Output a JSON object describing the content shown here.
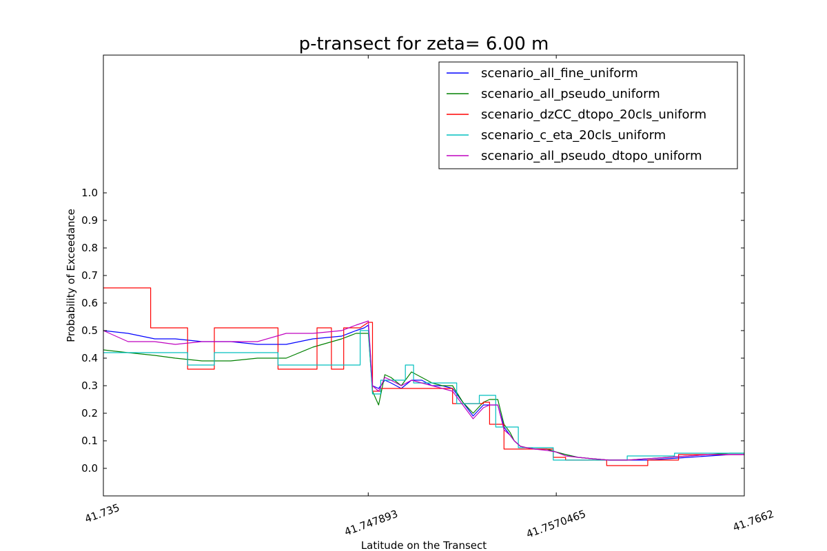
{
  "chart_data": {
    "type": "line",
    "title": "p-transect for zeta= 6.00 m",
    "xlabel": "Latitude on the Transect",
    "ylabel": "Probability of Exceedance",
    "xlim": [
      41.735,
      41.7662
    ],
    "ylim": [
      -0.1,
      1.5
    ],
    "x_ticks": [
      {
        "value": 41.735,
        "label": "41.735"
      },
      {
        "value": 41.747893,
        "label": "41.747893"
      },
      {
        "value": 41.7570465,
        "label": "41.7570465"
      },
      {
        "value": 41.7662,
        "label": "41.7662"
      }
    ],
    "y_ticks": [
      0.0,
      0.1,
      0.2,
      0.3,
      0.4,
      0.5,
      0.6,
      0.7,
      0.8,
      0.9,
      1.0
    ],
    "y_tick_labels": [
      "0.0",
      "0.1",
      "0.2",
      "0.3",
      "0.4",
      "0.5",
      "0.6",
      "0.7",
      "0.8",
      "0.9",
      "1.0"
    ],
    "grid": false,
    "legend_position": "top-right",
    "series": [
      {
        "name": "scenario_all_fine_uniform",
        "color": "#0000ff",
        "x": [
          41.735,
          41.7362,
          41.7375,
          41.7385,
          41.7398,
          41.7412,
          41.7425,
          41.7439,
          41.7452,
          41.7466,
          41.7473,
          41.7477,
          41.7479,
          41.7481,
          41.7484,
          41.7487,
          41.749,
          41.7495,
          41.75,
          41.7505,
          41.751,
          41.7515,
          41.752,
          41.7525,
          41.753,
          41.7535,
          41.7538,
          41.7542,
          41.7545,
          41.7548,
          41.755,
          41.7553,
          41.7556,
          41.756,
          41.7566,
          41.757,
          41.7575,
          41.7581,
          41.7588,
          41.7596,
          41.7605,
          41.7615,
          41.7625,
          41.7635,
          41.7645,
          41.7655,
          41.7662
        ],
        "y": [
          0.5,
          0.49,
          0.47,
          0.47,
          0.46,
          0.46,
          0.45,
          0.45,
          0.47,
          0.48,
          0.5,
          0.51,
          0.52,
          0.3,
          0.29,
          0.32,
          0.31,
          0.29,
          0.32,
          0.32,
          0.3,
          0.3,
          0.29,
          0.24,
          0.19,
          0.23,
          0.23,
          0.23,
          0.15,
          0.12,
          0.1,
          0.08,
          0.075,
          0.07,
          0.07,
          0.06,
          0.05,
          0.04,
          0.035,
          0.03,
          0.03,
          0.03,
          0.035,
          0.04,
          0.045,
          0.05,
          0.05
        ]
      },
      {
        "name": "scenario_all_pseudo_uniform",
        "color": "#008000",
        "x": [
          41.735,
          41.7362,
          41.7375,
          41.7385,
          41.7398,
          41.7412,
          41.7425,
          41.7439,
          41.7452,
          41.7466,
          41.7473,
          41.7477,
          41.7479,
          41.7481,
          41.7484,
          41.7487,
          41.749,
          41.7495,
          41.75,
          41.7505,
          41.751,
          41.7515,
          41.752,
          41.7525,
          41.753,
          41.7535,
          41.7538,
          41.7542,
          41.7545,
          41.7548,
          41.755,
          41.7553,
          41.7556,
          41.756,
          41.7566,
          41.757,
          41.7575,
          41.7581,
          41.7588,
          41.7596,
          41.7605,
          41.7615,
          41.7625,
          41.7635,
          41.7645,
          41.7655,
          41.7662
        ],
        "y": [
          0.43,
          0.42,
          0.41,
          0.4,
          0.39,
          0.39,
          0.4,
          0.4,
          0.44,
          0.47,
          0.49,
          0.49,
          0.49,
          0.28,
          0.23,
          0.34,
          0.33,
          0.3,
          0.35,
          0.33,
          0.31,
          0.3,
          0.3,
          0.24,
          0.2,
          0.24,
          0.25,
          0.25,
          0.16,
          0.13,
          0.1,
          0.08,
          0.075,
          0.07,
          0.07,
          0.06,
          0.05,
          0.04,
          0.035,
          0.03,
          0.03,
          0.035,
          0.04,
          0.045,
          0.05,
          0.055,
          0.055
        ]
      },
      {
        "name": "scenario_dzCC_dtopo_20cls_uniform",
        "color": "#ff0000",
        "x": [
          41.735,
          41.7373,
          41.7373,
          41.7391,
          41.7391,
          41.7404,
          41.7404,
          41.7435,
          41.7435,
          41.7454,
          41.7454,
          41.7461,
          41.7461,
          41.7462,
          41.7462,
          41.7467,
          41.7467,
          41.7475,
          41.7479,
          41.7481,
          41.7481,
          41.7485,
          41.7485,
          41.752,
          41.752,
          41.7535,
          41.7535,
          41.7538,
          41.7538,
          41.7545,
          41.7545,
          41.7552,
          41.7552,
          41.7569,
          41.7569,
          41.7575,
          41.7575,
          41.7595,
          41.7595,
          41.7615,
          41.7615,
          41.763,
          41.763,
          41.7662
        ],
        "y": [
          0.655,
          0.655,
          0.51,
          0.51,
          0.36,
          0.36,
          0.51,
          0.51,
          0.36,
          0.36,
          0.51,
          0.51,
          0.36,
          0.36,
          0.36,
          0.36,
          0.51,
          0.51,
          0.53,
          0.53,
          0.28,
          0.28,
          0.29,
          0.29,
          0.235,
          0.235,
          0.24,
          0.24,
          0.16,
          0.16,
          0.07,
          0.07,
          0.07,
          0.07,
          0.04,
          0.04,
          0.03,
          0.03,
          0.01,
          0.01,
          0.03,
          0.03,
          0.05,
          0.05
        ]
      },
      {
        "name": "scenario_c_eta_20cls_uniform",
        "color": "#00bfbf",
        "x": [
          41.735,
          41.7391,
          41.7391,
          41.7404,
          41.7404,
          41.7435,
          41.7435,
          41.7475,
          41.7475,
          41.7479,
          41.7481,
          41.7485,
          41.7485,
          41.7497,
          41.7497,
          41.7501,
          41.7501,
          41.7515,
          41.7515,
          41.7522,
          41.7522,
          41.7533,
          41.7533,
          41.7541,
          41.7541,
          41.7552,
          41.7552,
          41.7569,
          41.7569,
          41.7605,
          41.7605,
          41.7612,
          41.7612,
          41.7628,
          41.7628,
          41.7662
        ],
        "y": [
          0.42,
          0.42,
          0.375,
          0.375,
          0.42,
          0.42,
          0.375,
          0.375,
          0.5,
          0.5,
          0.27,
          0.27,
          0.32,
          0.32,
          0.375,
          0.375,
          0.31,
          0.31,
          0.31,
          0.31,
          0.235,
          0.235,
          0.265,
          0.265,
          0.15,
          0.15,
          0.075,
          0.075,
          0.03,
          0.03,
          0.045,
          0.045,
          0.045,
          0.045,
          0.055,
          0.055
        ]
      },
      {
        "name": "scenario_all_pseudo_dtopo_uniform",
        "color": "#bf00bf",
        "x": [
          41.735,
          41.7362,
          41.7375,
          41.7385,
          41.7398,
          41.7412,
          41.7425,
          41.7439,
          41.7452,
          41.7466,
          41.7473,
          41.7477,
          41.7479,
          41.7481,
          41.7484,
          41.7487,
          41.749,
          41.7495,
          41.75,
          41.7505,
          41.751,
          41.7515,
          41.752,
          41.7525,
          41.753,
          41.7535,
          41.7538,
          41.7542,
          41.7545,
          41.7548,
          41.755,
          41.7553,
          41.7556,
          41.756,
          41.7566,
          41.757,
          41.7575,
          41.7581,
          41.7588,
          41.7596,
          41.7605,
          41.7615,
          41.7625,
          41.7635,
          41.7645,
          41.7655,
          41.7662
        ],
        "y": [
          0.5,
          0.46,
          0.46,
          0.45,
          0.46,
          0.46,
          0.46,
          0.49,
          0.49,
          0.5,
          0.52,
          0.53,
          0.535,
          0.3,
          0.28,
          0.33,
          0.32,
          0.3,
          0.32,
          0.31,
          0.3,
          0.29,
          0.28,
          0.23,
          0.18,
          0.22,
          0.23,
          0.23,
          0.14,
          0.12,
          0.1,
          0.08,
          0.075,
          0.07,
          0.065,
          0.06,
          0.045,
          0.04,
          0.035,
          0.03,
          0.03,
          0.035,
          0.04,
          0.045,
          0.05,
          0.05,
          0.05
        ]
      }
    ]
  }
}
